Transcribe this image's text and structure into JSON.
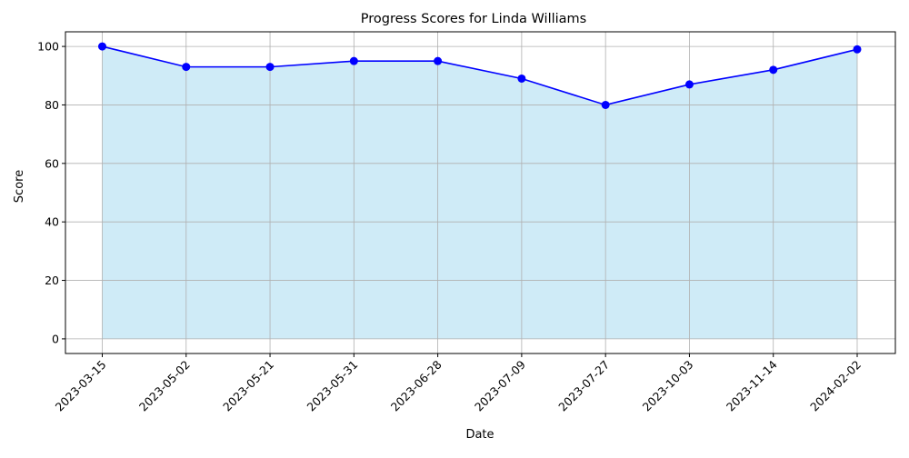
{
  "chart_data": {
    "type": "area",
    "title": "Progress Scores for Linda Williams",
    "xlabel": "Date",
    "ylabel": "Score",
    "categories": [
      "2023-03-15",
      "2023-05-02",
      "2023-05-21",
      "2023-05-31",
      "2023-06-28",
      "2023-07-09",
      "2023-07-27",
      "2023-10-03",
      "2023-11-14",
      "2024-02-02"
    ],
    "series": [
      {
        "values": [
          100,
          93,
          93,
          95,
          95,
          89,
          80,
          87,
          92,
          99
        ]
      }
    ],
    "ylim": [
      -5,
      105
    ],
    "yticks": [
      "0",
      "20",
      "40",
      "60",
      "80",
      "100"
    ],
    "grid": true,
    "legend": "none",
    "colors": {
      "line": "#0000ff",
      "marker": "#0000ff",
      "fill": "#87ceeb",
      "grid": "#b0b0b0",
      "axes": "#000000"
    }
  }
}
